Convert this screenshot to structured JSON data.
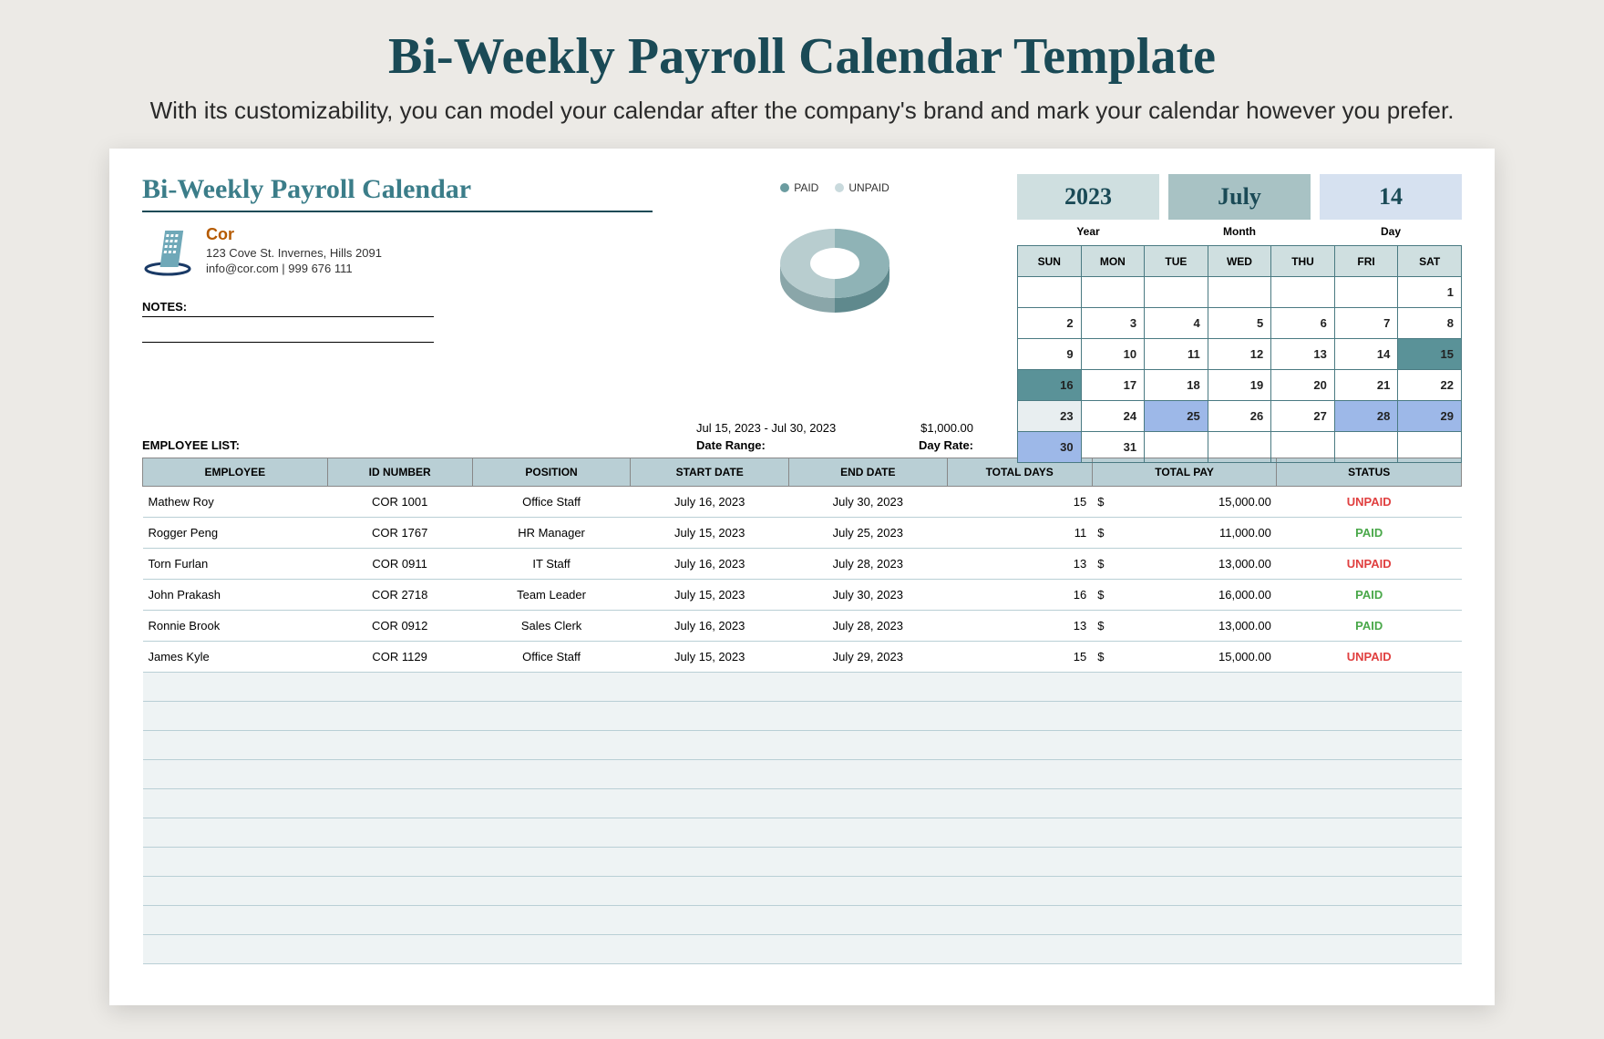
{
  "hero": {
    "title": "Bi-Weekly Payroll Calendar Template",
    "subtitle": "With its customizability, you can model your calendar after the company's brand and mark your calendar however you prefer."
  },
  "doc": {
    "title": "Bi-Weekly Payroll Calendar",
    "company_name": "Cor",
    "company_address": "123 Cove St. Invernes, Hills 2091",
    "company_contact": "info@cor.com | 999 676 111",
    "notes_label": "NOTES:",
    "employee_list_label": "EMPLOYEE LIST:"
  },
  "chart": {
    "type": "donut",
    "legend": [
      {
        "label": "PAID",
        "color": "#6b9ca0"
      },
      {
        "label": "UNPAID",
        "color": "#c9dadd"
      }
    ],
    "slices": [
      {
        "value": 50,
        "color_top": "#8fb3b6",
        "color_side": "#5f898d"
      },
      {
        "value": 50,
        "color_top": "#b8cdcf",
        "color_side": "#8aa6a9"
      }
    ],
    "inner_hole_color": "#ffffff"
  },
  "range": {
    "date_range_value": "Jul 15, 2023 - Jul 30, 2023",
    "date_range_label": "Date Range:",
    "day_rate_value": "$1,000.00",
    "day_rate_label": "Day Rate:"
  },
  "calendar": {
    "year": "2023",
    "month": "July",
    "day": "14",
    "year_label": "Year",
    "month_label": "Month",
    "day_label": "Day",
    "headers": [
      "SUN",
      "MON",
      "TUE",
      "WED",
      "THU",
      "FRI",
      "SAT"
    ],
    "weeks": [
      [
        {
          "d": ""
        },
        {
          "d": ""
        },
        {
          "d": ""
        },
        {
          "d": ""
        },
        {
          "d": ""
        },
        {
          "d": ""
        },
        {
          "d": "1"
        }
      ],
      [
        {
          "d": "2"
        },
        {
          "d": "3"
        },
        {
          "d": "4"
        },
        {
          "d": "5"
        },
        {
          "d": "6"
        },
        {
          "d": "7"
        },
        {
          "d": "8"
        }
      ],
      [
        {
          "d": "9"
        },
        {
          "d": "10"
        },
        {
          "d": "11"
        },
        {
          "d": "12"
        },
        {
          "d": "13"
        },
        {
          "d": "14"
        },
        {
          "d": "15",
          "cls": "hl-teal"
        }
      ],
      [
        {
          "d": "16",
          "cls": "hl-teal"
        },
        {
          "d": "17"
        },
        {
          "d": "18"
        },
        {
          "d": "19"
        },
        {
          "d": "20"
        },
        {
          "d": "21"
        },
        {
          "d": "22"
        }
      ],
      [
        {
          "d": "23",
          "cls": "hl-gray"
        },
        {
          "d": "24"
        },
        {
          "d": "25",
          "cls": "hl-blue"
        },
        {
          "d": "26"
        },
        {
          "d": "27"
        },
        {
          "d": "28",
          "cls": "hl-blue"
        },
        {
          "d": "29",
          "cls": "hl-blue"
        }
      ],
      [
        {
          "d": "30",
          "cls": "hl-blue"
        },
        {
          "d": "31"
        },
        {
          "d": ""
        },
        {
          "d": ""
        },
        {
          "d": ""
        },
        {
          "d": ""
        },
        {
          "d": ""
        }
      ]
    ]
  },
  "columns": [
    "EMPLOYEE",
    "ID NUMBER",
    "POSITION",
    "START DATE",
    "END DATE",
    "TOTAL DAYS",
    "TOTAL PAY",
    "STATUS"
  ],
  "employees": [
    {
      "name": "Mathew Roy",
      "id": "COR 1001",
      "pos": "Office Staff",
      "start": "July 16, 2023",
      "end": "July 30, 2023",
      "days": "15",
      "pay": "15,000.00",
      "status": "UNPAID"
    },
    {
      "name": "Rogger Peng",
      "id": "COR 1767",
      "pos": "HR Manager",
      "start": "July 15, 2023",
      "end": "July 25, 2023",
      "days": "11",
      "pay": "11,000.00",
      "status": "PAID"
    },
    {
      "name": "Torn Furlan",
      "id": "COR 0911",
      "pos": "IT Staff",
      "start": "July 16, 2023",
      "end": "July 28, 2023",
      "days": "13",
      "pay": "13,000.00",
      "status": "UNPAID"
    },
    {
      "name": "John Prakash",
      "id": "COR 2718",
      "pos": "Team Leader",
      "start": "July 15, 2023",
      "end": "July 30, 2023",
      "days": "16",
      "pay": "16,000.00",
      "status": "PAID"
    },
    {
      "name": "Ronnie Brook",
      "id": "COR 0912",
      "pos": "Sales Clerk",
      "start": "July 16, 2023",
      "end": "July 28, 2023",
      "days": "13",
      "pay": "13,000.00",
      "status": "PAID"
    },
    {
      "name": "James Kyle",
      "id": "COR  1129",
      "pos": "Office Staff",
      "start": "July 15, 2023",
      "end": "July 29, 2023",
      "days": "15",
      "pay": "15,000.00",
      "status": "UNPAID"
    }
  ],
  "empty_rows": 10,
  "colors": {
    "brand_teal": "#1a4a56",
    "header_bg": "#b9cfd5",
    "paid": "#4aa84a",
    "unpaid": "#e04040"
  }
}
